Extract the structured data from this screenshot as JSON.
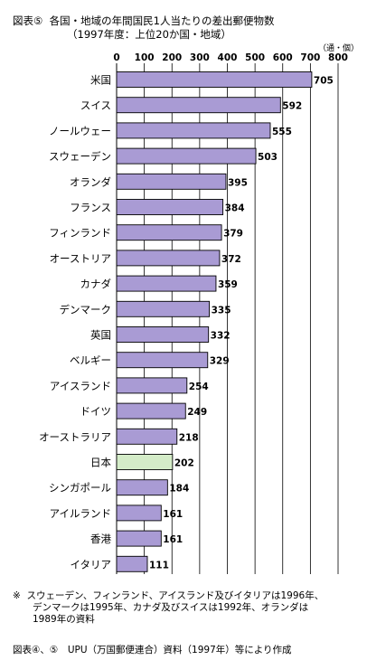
{
  "figure": {
    "number": "図表⑤",
    "title_line1": "各国・地域の年間国民1人当たりの差出郵便物数",
    "title_line2": "（1997年度：上位20か国・地域）"
  },
  "chart_data": {
    "type": "bar",
    "orientation": "horizontal",
    "unit_label": "（通・個）",
    "xlim": [
      0,
      800
    ],
    "ticks": [
      0,
      100,
      200,
      300,
      400,
      500,
      600,
      700,
      800
    ],
    "grid": true,
    "categories": [
      "米国",
      "スイス",
      "ノールウェー",
      "スウェーデン",
      "オランダ",
      "フランス",
      "フィンランド",
      "オーストリア",
      "カナダ",
      "デンマーク",
      "英国",
      "ベルギー",
      "アイスランド",
      "ドイツ",
      "オーストラリア",
      "日本",
      "シンガポール",
      "アイルランド",
      "香港",
      "イタリア"
    ],
    "values": [
      705,
      592,
      555,
      503,
      395,
      384,
      379,
      372,
      359,
      335,
      332,
      329,
      254,
      249,
      218,
      202,
      184,
      161,
      161,
      111
    ],
    "highlight_category": "日本",
    "colors": {
      "bar": "#a99bd4",
      "highlight": "#d4ecc8",
      "outline": "#000000"
    }
  },
  "notes": {
    "mark": "※",
    "lines": [
      "スウェーデン、フィンランド、アイスランド及びイタリアは1996年、",
      "デンマークは1995年、カナダ及びスイスは1992年、オランダは",
      "1989年の資料"
    ]
  },
  "source": "図表④、⑤　UPU（万国郵便連合）資料（1997年）等により作成"
}
